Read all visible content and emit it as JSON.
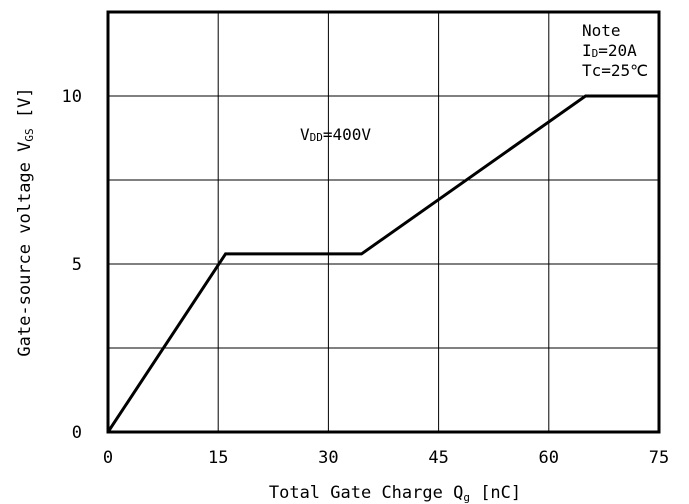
{
  "chart_data": {
    "type": "line",
    "x": [
      0,
      16,
      34.5,
      65,
      75
    ],
    "series": [
      {
        "values": [
          0,
          5.3,
          5.3,
          10,
          10
        ],
        "color": "#000000"
      }
    ],
    "xlim": [
      0,
      75
    ],
    "ylim": [
      0,
      12.5
    ],
    "xticks": [
      0,
      15,
      30,
      45,
      60,
      75
    ],
    "yticks": [
      0,
      5,
      10
    ],
    "grid": true,
    "xlabel": {
      "prefix": "Total Gate Charge Q",
      "sub": "g",
      "suffix": " [nC]"
    },
    "ylabel": {
      "prefix": "Gate-source voltage V",
      "sub": "GS",
      "suffix": " [V]"
    },
    "annotations": {
      "vdd": {
        "prefix": "V",
        "sub": "DD",
        "suffix": "=400V"
      },
      "note_title": "Note",
      "note_id": {
        "prefix": "I",
        "sub": "D",
        "suffix": "=20A"
      },
      "note_tc": "Tc=25℃"
    }
  }
}
